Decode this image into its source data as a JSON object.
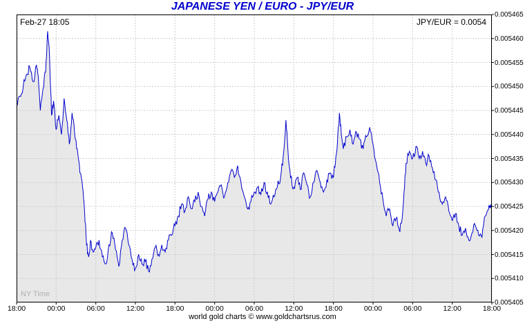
{
  "title": "JAPANESE YEN / EURO - JPY/EUR",
  "header": {
    "timestamp": "Feb-27  18:05",
    "quote": "JPY/EUR = 0.0054"
  },
  "watermark": "NY Time",
  "footer": {
    "credit": "world gold charts © www.goldchartsrus.com"
  },
  "colors": {
    "line": "#0000cc",
    "fill": "#e8e8e8",
    "grid": "#cccccc",
    "title": "#0000cc",
    "axis_text": "#000000",
    "watermark": "#b0b0b0"
  },
  "chart_data": {
    "type": "line",
    "title": "JAPANESE YEN / EURO - JPY/EUR",
    "x_unit": "NY Time, 6-hour ticks over 3 days",
    "x_hours_max": 72,
    "x_tick_hours": [
      0,
      6,
      12,
      18,
      24,
      30,
      36,
      42,
      48,
      54,
      60,
      66,
      72
    ],
    "x_tick_labels": [
      "18:00",
      "00:00",
      "06:00",
      "12:00",
      "18:00",
      "00:00",
      "06:00",
      "12:00",
      "18:00",
      "00:00",
      "06:00",
      "12:00",
      "18:00"
    ],
    "ylim": [
      0.005405,
      0.005465
    ],
    "y_ticks": [
      0.005405,
      0.00541,
      0.005415,
      0.00542,
      0.005425,
      0.00543,
      0.005435,
      0.00544,
      0.005445,
      0.00545,
      0.005455,
      0.00546,
      0.005465
    ],
    "last_price": 0.005425,
    "points": [
      [
        0,
        0.005446
      ],
      [
        0.5,
        0.005448
      ],
      [
        1,
        0.00545
      ],
      [
        1.5,
        0.0054525
      ],
      [
        2,
        0.005454
      ],
      [
        2.5,
        0.005451
      ],
      [
        3,
        0.0054545
      ],
      [
        3.3,
        0.005452
      ],
      [
        3.6,
        0.005445
      ],
      [
        4,
        0.0054495
      ],
      [
        4.4,
        0.005453
      ],
      [
        4.7,
        0.0054615
      ],
      [
        5,
        0.005456
      ],
      [
        5.3,
        0.005444
      ],
      [
        5.6,
        0.005447
      ],
      [
        6,
        0.005441
      ],
      [
        6.4,
        0.005444
      ],
      [
        6.8,
        0.00544
      ],
      [
        7.2,
        0.0054475
      ],
      [
        7.6,
        0.005443
      ],
      [
        8,
        0.005438
      ],
      [
        8.4,
        0.0054445
      ],
      [
        8.8,
        0.00544
      ],
      [
        9.2,
        0.005437
      ],
      [
        9.6,
        0.005432
      ],
      [
        10,
        0.005429
      ],
      [
        10.3,
        0.005424
      ],
      [
        10.6,
        0.005417
      ],
      [
        10.9,
        0.0054145
      ],
      [
        11.2,
        0.005418
      ],
      [
        11.6,
        0.0054155
      ],
      [
        12,
        0.0054165
      ],
      [
        12.5,
        0.005418
      ],
      [
        13,
        0.0054145
      ],
      [
        13.5,
        0.005413
      ],
      [
        14,
        0.005417
      ],
      [
        14.5,
        0.0054195
      ],
      [
        15,
        0.005416
      ],
      [
        15.5,
        0.0054125
      ],
      [
        16,
        0.005418
      ],
      [
        16.5,
        0.0054205
      ],
      [
        17,
        0.005417
      ],
      [
        17.5,
        0.005414
      ],
      [
        18,
        0.005412
      ],
      [
        18.5,
        0.005415
      ],
      [
        19,
        0.005413
      ],
      [
        19.5,
        0.0054135
      ],
      [
        20,
        0.0054115
      ],
      [
        20.5,
        0.005414
      ],
      [
        21,
        0.0054165
      ],
      [
        21.5,
        0.005415
      ],
      [
        22,
        0.005417
      ],
      [
        22.5,
        0.0054155
      ],
      [
        23,
        0.005418
      ],
      [
        23.5,
        0.005419
      ],
      [
        24,
        0.005421
      ],
      [
        24.5,
        0.005423
      ],
      [
        25,
        0.0054255
      ],
      [
        25.5,
        0.005424
      ],
      [
        26,
        0.005427
      ],
      [
        26.5,
        0.0054245
      ],
      [
        27,
        0.005426
      ],
      [
        27.5,
        0.005428
      ],
      [
        28,
        0.005425
      ],
      [
        28.5,
        0.005423
      ],
      [
        29,
        0.0054265
      ],
      [
        29.5,
        0.005428
      ],
      [
        30,
        0.005426
      ],
      [
        30.5,
        0.005428
      ],
      [
        31,
        0.0054295
      ],
      [
        31.5,
        0.005427
      ],
      [
        32,
        0.00543
      ],
      [
        32.5,
        0.0054325
      ],
      [
        33,
        0.005431
      ],
      [
        33.5,
        0.0054335
      ],
      [
        34,
        0.00543
      ],
      [
        34.5,
        0.005427
      ],
      [
        35,
        0.0054245
      ],
      [
        35.5,
        0.005426
      ],
      [
        36,
        0.005428
      ],
      [
        36.5,
        0.005429
      ],
      [
        37,
        0.0054275
      ],
      [
        37.5,
        0.00543
      ],
      [
        38,
        0.005428
      ],
      [
        38.5,
        0.0054255
      ],
      [
        39,
        0.005427
      ],
      [
        39.5,
        0.005429
      ],
      [
        40,
        0.005431
      ],
      [
        40.4,
        0.0054355
      ],
      [
        40.8,
        0.005443
      ],
      [
        41.1,
        0.005437
      ],
      [
        41.5,
        0.005431
      ],
      [
        42,
        0.005429
      ],
      [
        42.5,
        0.005431
      ],
      [
        43,
        0.0054285
      ],
      [
        43.5,
        0.005432
      ],
      [
        44,
        0.0054295
      ],
      [
        44.5,
        0.005427
      ],
      [
        45,
        0.00543
      ],
      [
        45.5,
        0.0054325
      ],
      [
        46,
        0.00543
      ],
      [
        46.5,
        0.005428
      ],
      [
        47,
        0.0054305
      ],
      [
        47.5,
        0.005432
      ],
      [
        48,
        0.005431
      ],
      [
        48.3,
        0.005434
      ],
      [
        48.6,
        0.005438
      ],
      [
        48.9,
        0.0054445
      ],
      [
        49.2,
        0.00544
      ],
      [
        49.5,
        0.005437
      ],
      [
        50,
        0.0054395
      ],
      [
        50.5,
        0.005441
      ],
      [
        51,
        0.005438
      ],
      [
        51.5,
        0.0054405
      ],
      [
        52,
        0.005439
      ],
      [
        52.5,
        0.005437
      ],
      [
        53,
        0.0054395
      ],
      [
        53.5,
        0.0054415
      ],
      [
        54,
        0.005438
      ],
      [
        54.5,
        0.005434
      ],
      [
        55,
        0.00543
      ],
      [
        55.5,
        0.0054265
      ],
      [
        56,
        0.005423
      ],
      [
        56.5,
        0.0054245
      ],
      [
        57,
        0.005421
      ],
      [
        57.5,
        0.0054225
      ],
      [
        58,
        0.00542
      ],
      [
        58.3,
        0.0054215
      ],
      [
        58.7,
        0.005428
      ],
      [
        59,
        0.005434
      ],
      [
        59.5,
        0.0054365
      ],
      [
        60,
        0.005435
      ],
      [
        60.5,
        0.0054375
      ],
      [
        61,
        0.005435
      ],
      [
        61.5,
        0.0054365
      ],
      [
        62,
        0.005434
      ],
      [
        62.5,
        0.0054355
      ],
      [
        63,
        0.005433
      ],
      [
        63.5,
        0.0054305
      ],
      [
        64,
        0.005428
      ],
      [
        64.5,
        0.0054255
      ],
      [
        65,
        0.005427
      ],
      [
        65.5,
        0.005424
      ],
      [
        66,
        0.005422
      ],
      [
        66.5,
        0.0054235
      ],
      [
        67,
        0.005421
      ],
      [
        67.5,
        0.005419
      ],
      [
        68,
        0.0054205
      ],
      [
        68.5,
        0.005418
      ],
      [
        69,
        0.0054195
      ],
      [
        69.5,
        0.005421
      ],
      [
        70,
        0.005419
      ],
      [
        70.5,
        0.0054185
      ],
      [
        71,
        0.005423
      ],
      [
        71.5,
        0.0054245
      ],
      [
        72,
        0.005425
      ]
    ]
  }
}
